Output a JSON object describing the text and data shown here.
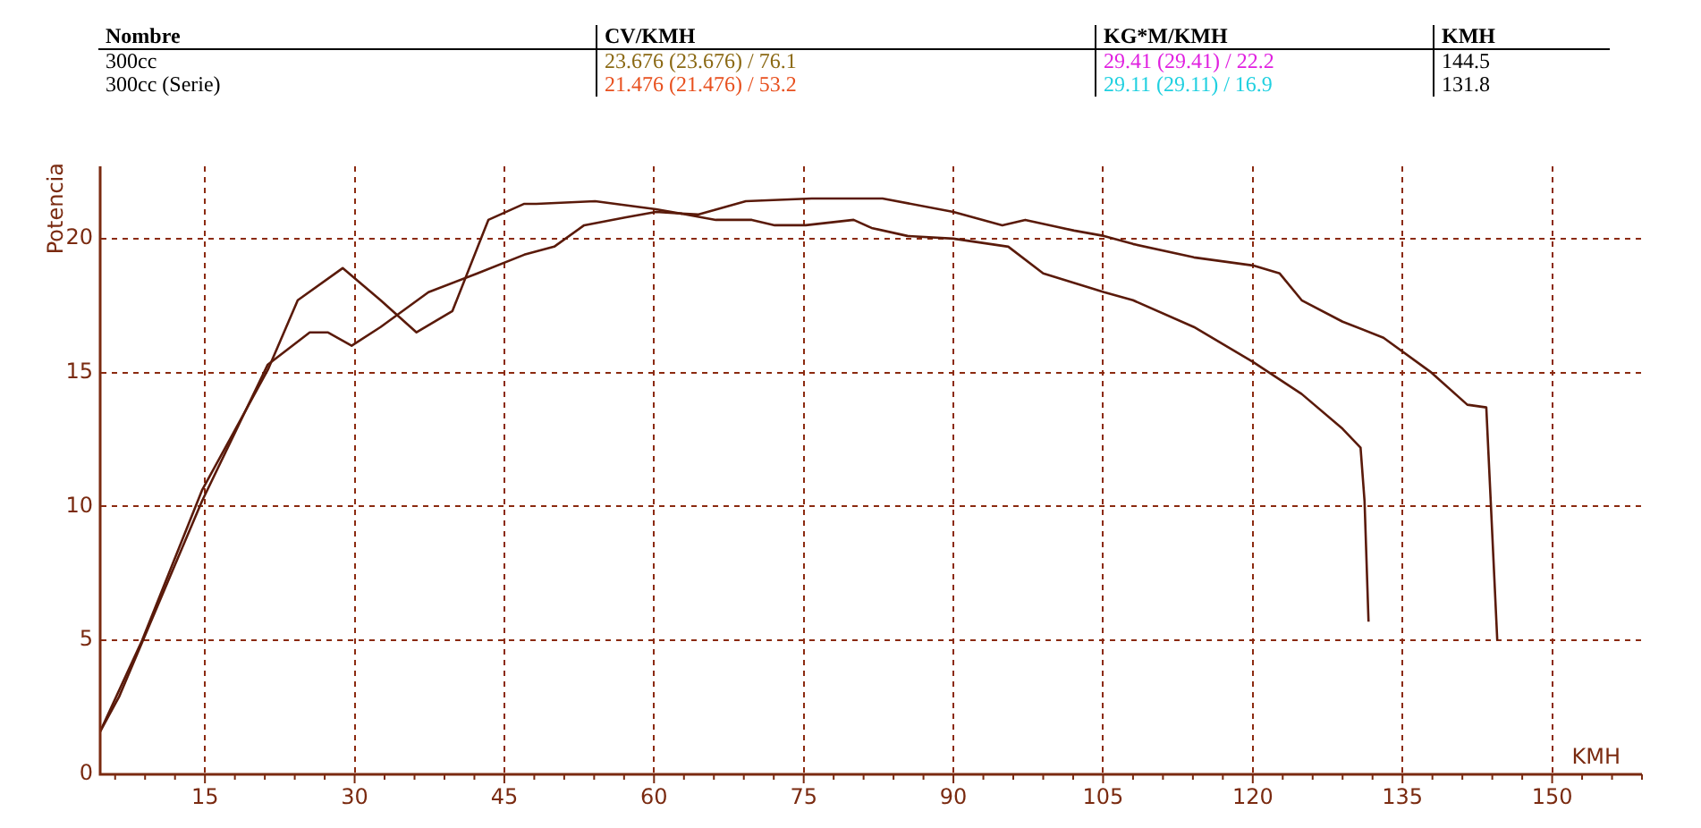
{
  "chart_data": {
    "type": "line",
    "xlabel": "KMH",
    "ylabel": "Potencia",
    "annotations": [
      "Nombre",
      "CV/KMH",
      "KG*M/KMH",
      "KMH",
      "300cc",
      "23.676 (23.676) / 76.1",
      "29.41 (29.41) / 22.2",
      "144.5",
      "300cc (Serie)",
      "21.476 (21.476) / 53.2",
      "29.11 (29.11) / 16.9",
      "131.8"
    ],
    "series": [
      {
        "color": "#5a1a0a",
        "x": [
          4.5,
          6.4,
          14.7,
          21.3,
          25.5,
          27.3,
          29.7,
          32.6,
          37.4,
          42.3,
          47,
          50,
          53,
          57.2,
          60.2,
          64.4,
          69.2,
          75.8,
          82.9,
          90,
          94.9,
          97.2,
          102.1,
          105.1,
          108,
          114.1,
          120,
          122.7,
          124.9,
          129,
          133.1,
          137.9,
          141.5,
          143.4,
          144.5
        ],
        "values": [
          1.6,
          2.9,
          10.2,
          15.3,
          16.5,
          16.5,
          16.0,
          16.7,
          18.0,
          18.7,
          19.4,
          19.7,
          20.5,
          20.8,
          21.0,
          20.9,
          21.4,
          21.5,
          21.5,
          21.0,
          20.5,
          20.7,
          20.3,
          20.1,
          19.8,
          19.3,
          19.0,
          18.7,
          17.7,
          16.9,
          16.3,
          15.0,
          13.8,
          13.7,
          5.0
        ]
      },
      {
        "color": "#5a1a0a",
        "x": [
          4.5,
          8.7,
          14.7,
          21.3,
          24.3,
          28.8,
          32.6,
          36.2,
          39.8,
          43.4,
          47,
          48.2,
          54.1,
          60.2,
          66.2,
          69.8,
          72.1,
          75.2,
          80,
          81.8,
          85.4,
          90,
          95.5,
          99,
          105.1,
          108,
          114.1,
          120,
          124.9,
          129,
          130.8,
          131.2,
          131.6
        ],
        "values": [
          1.6,
          5.0,
          10.6,
          15.1,
          17.7,
          18.9,
          17.7,
          16.5,
          17.3,
          20.7,
          21.3,
          21.3,
          21.4,
          21.1,
          20.7,
          20.7,
          20.5,
          20.5,
          20.7,
          20.4,
          20.1,
          20.0,
          19.7,
          18.7,
          18.0,
          17.7,
          16.7,
          15.4,
          14.2,
          12.9,
          12.2,
          10.2,
          5.7
        ]
      }
    ],
    "xlim": [
      4.5,
      159
    ],
    "ylim": [
      0,
      22.7
    ],
    "xticks": [
      {
        "value": 6,
        "label": null
      },
      {
        "value": 9,
        "label": null
      },
      {
        "value": 12,
        "label": null
      },
      15,
      {
        "value": 18,
        "label": null
      },
      {
        "value": 21,
        "label": null
      },
      {
        "value": 24,
        "label": null
      },
      {
        "value": 27,
        "label": null
      },
      30,
      {
        "value": 33,
        "label": null
      },
      {
        "value": 36,
        "label": null
      },
      {
        "value": 39,
        "label": null
      },
      {
        "value": 42,
        "label": null
      },
      45,
      {
        "value": 48,
        "label": null
      },
      {
        "value": 51,
        "label": null
      },
      {
        "value": 54,
        "label": null
      },
      {
        "value": 57,
        "label": null
      },
      60,
      {
        "value": 63,
        "label": null
      },
      {
        "value": 66,
        "label": null
      },
      {
        "value": 69,
        "label": null
      },
      {
        "value": 72,
        "label": null
      },
      75,
      {
        "value": 78,
        "label": null
      },
      {
        "value": 81,
        "label": null
      },
      {
        "value": 84,
        "label": null
      },
      {
        "value": 87,
        "label": null
      },
      90,
      {
        "value": 93,
        "label": null
      },
      {
        "value": 96,
        "label": null
      },
      {
        "value": 99,
        "label": null
      },
      {
        "value": 102,
        "label": null
      },
      105,
      {
        "value": 108,
        "label": null
      },
      {
        "value": 111,
        "label": null
      },
      {
        "value": 114,
        "label": null
      },
      {
        "value": 117,
        "label": null
      },
      120,
      {
        "value": 123,
        "label": null
      },
      {
        "value": 126,
        "label": null
      },
      {
        "value": 129,
        "label": null
      },
      {
        "value": 132,
        "label": null
      },
      135,
      {
        "value": 138,
        "label": null
      },
      {
        "value": 141,
        "label": null
      },
      {
        "value": 144,
        "label": null
      },
      {
        "value": 147,
        "label": null
      },
      150,
      {
        "value": 153,
        "label": null
      },
      {
        "value": 156,
        "label": null
      },
      {
        "value": 159,
        "label": null
      }
    ],
    "yticks": [
      0,
      5,
      10,
      15,
      20
    ],
    "grid": true,
    "legend": false,
    "marker": "none",
    "line_style": "solid"
  }
}
